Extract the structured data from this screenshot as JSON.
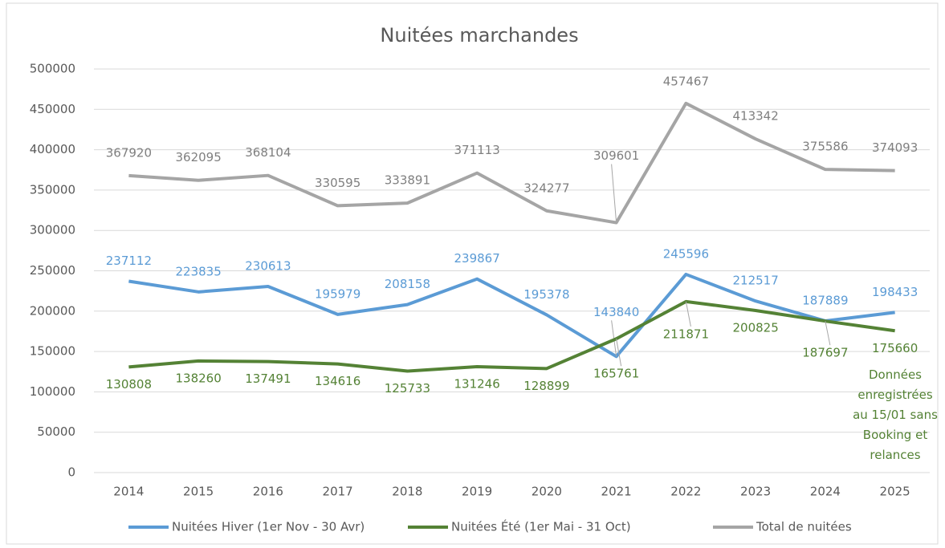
{
  "chart_data": {
    "type": "line",
    "title": "Nuitées marchandes",
    "categories": [
      "2014",
      "2015",
      "2016",
      "2017",
      "2018",
      "2019",
      "2020",
      "2021",
      "2022",
      "2023",
      "2024",
      "2025"
    ],
    "series": [
      {
        "name": "Nuitées Hiver (1er Nov - 30 Avr)",
        "color": "#5b9bd5",
        "label_color": "#5b9bd5",
        "values": [
          237112,
          223835,
          230613,
          195979,
          208158,
          239867,
          195378,
          143840,
          245596,
          212517,
          187889,
          198433
        ]
      },
      {
        "name": "Nuitées Été (1er Mai - 31 Oct)",
        "color": "#548235",
        "label_color": "#548235",
        "values": [
          130808,
          138260,
          137491,
          134616,
          125733,
          131246,
          128899,
          165761,
          211871,
          200825,
          187697,
          175660
        ]
      },
      {
        "name": "Total de nuitées",
        "color": "#a5a5a5",
        "label_color": "#7f7f7f",
        "values": [
          367920,
          362095,
          368104,
          330595,
          333891,
          371113,
          324277,
          309601,
          457467,
          413342,
          375586,
          374093
        ]
      }
    ],
    "annotation": "Données enregistrées au 15/01 sans Booking et relances",
    "ylim": [
      0,
      500000
    ],
    "yticks": [
      0,
      50000,
      100000,
      150000,
      200000,
      250000,
      300000,
      350000,
      400000,
      450000,
      500000
    ],
    "grid": true,
    "legend": "bottom"
  }
}
